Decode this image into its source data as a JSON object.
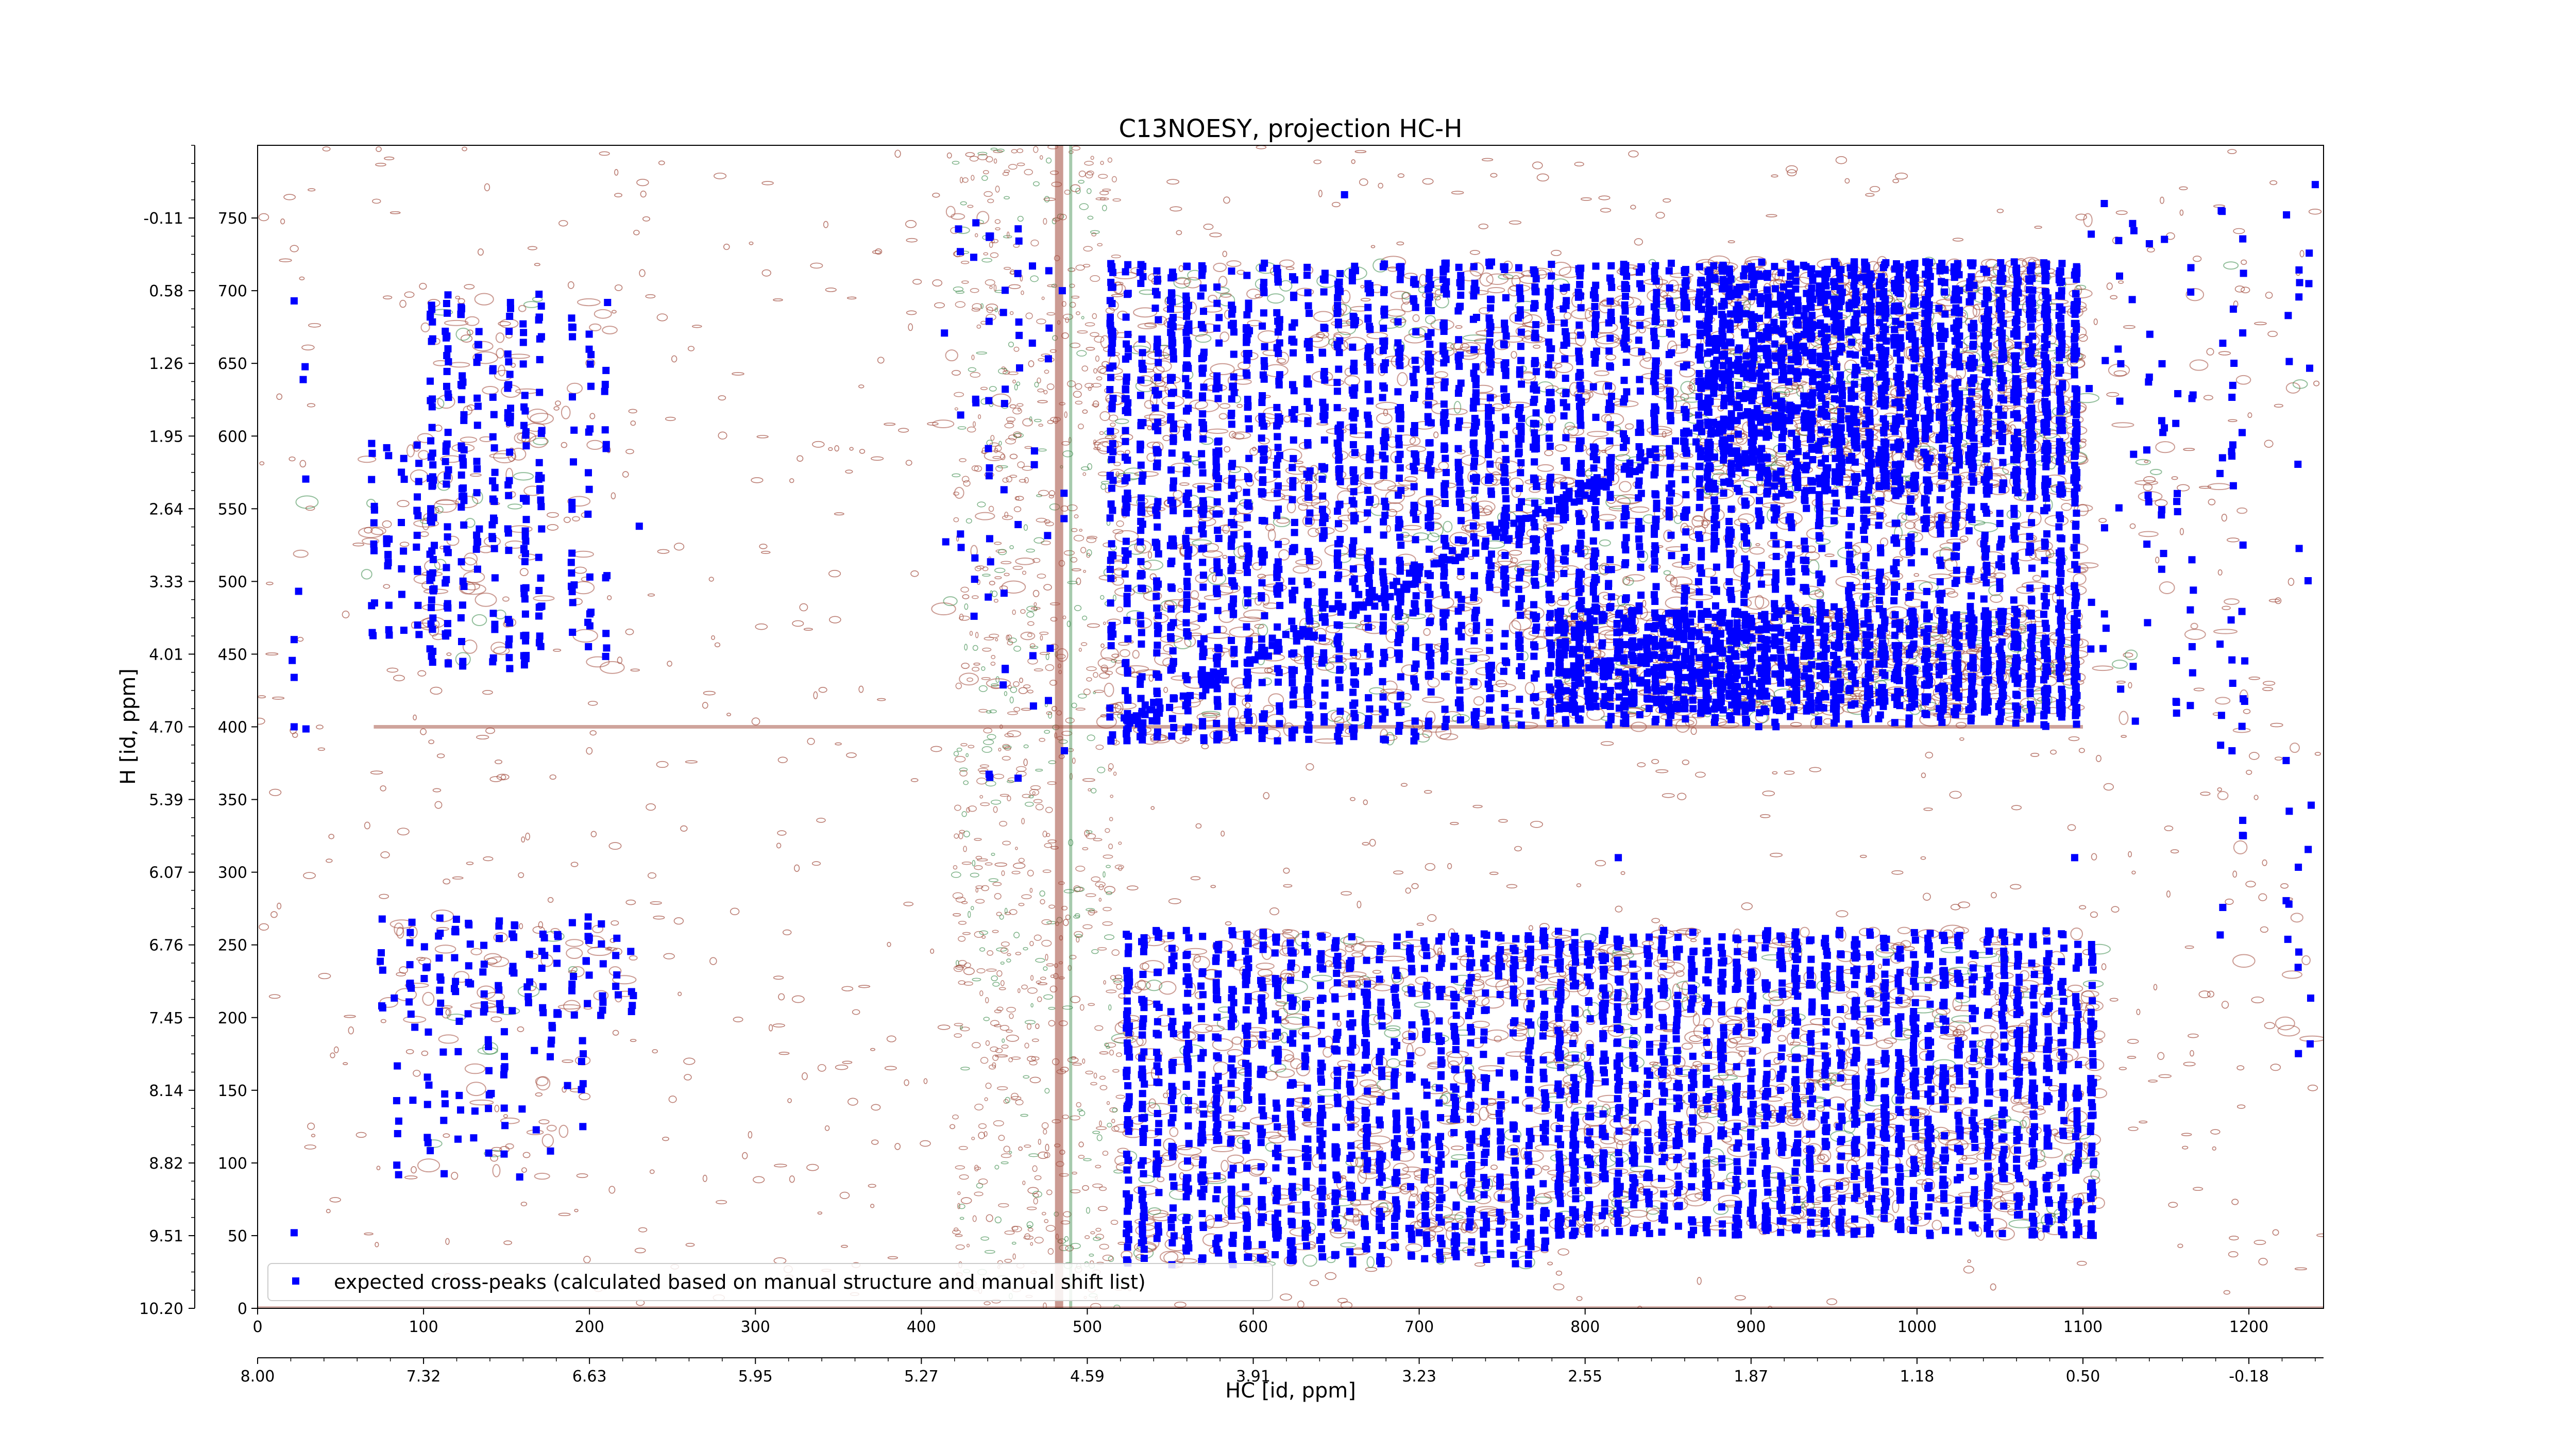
{
  "chart_data": {
    "type": "scatter",
    "title": "C13NOESY, projection HC-H",
    "xlabel": "HC [id, ppm]",
    "ylabel": "H [id, ppm]",
    "xlim": [
      0,
      1245
    ],
    "ylim": [
      0,
      800
    ],
    "x_ticks": [
      "0",
      "100",
      "200",
      "300",
      "400",
      "500",
      "600",
      "700",
      "800",
      "900",
      "1000",
      "1100",
      "1200"
    ],
    "x_ppm_ticks": [
      {
        "x": 0,
        "label": "8.00"
      },
      {
        "x": 100,
        "label": "7.32"
      },
      {
        "x": 200,
        "label": "6.63"
      },
      {
        "x": 300,
        "label": "5.95"
      },
      {
        "x": 400,
        "label": "5.27"
      },
      {
        "x": 500,
        "label": "4.59"
      },
      {
        "x": 600,
        "label": "3.91"
      },
      {
        "x": 700,
        "label": "3.23"
      },
      {
        "x": 800,
        "label": "2.55"
      },
      {
        "x": 900,
        "label": "1.87"
      },
      {
        "x": 1000,
        "label": "1.18"
      },
      {
        "x": 1100,
        "label": "0.50"
      },
      {
        "x": 1200,
        "label": "-0.18"
      }
    ],
    "y_ticks": [
      "0",
      "50",
      "100",
      "150",
      "200",
      "250",
      "300",
      "350",
      "400",
      "450",
      "500",
      "550",
      "600",
      "650",
      "700",
      "750"
    ],
    "y_ppm_ticks": [
      {
        "y": 0,
        "label": "10.20"
      },
      {
        "y": 50,
        "label": "9.51"
      },
      {
        "y": 100,
        "label": "8.82"
      },
      {
        "y": 150,
        "label": "8.14"
      },
      {
        "y": 200,
        "label": "7.45"
      },
      {
        "y": 250,
        "label": "6.76"
      },
      {
        "y": 300,
        "label": "6.07"
      },
      {
        "y": 350,
        "label": "5.39"
      },
      {
        "y": 400,
        "label": "4.70"
      },
      {
        "y": 450,
        "label": "4.01"
      },
      {
        "y": 500,
        "label": "3.33"
      },
      {
        "y": 550,
        "label": "2.64"
      },
      {
        "y": 600,
        "label": "1.95"
      },
      {
        "y": 650,
        "label": "1.26"
      },
      {
        "y": 700,
        "label": "0.58"
      },
      {
        "y": 750,
        "label": "-0.11"
      }
    ],
    "legend": {
      "label": "expected cross-peaks (calculated based on manual structure and manual shift list)",
      "placement": "bottom-left"
    },
    "colors": {
      "markers": "#0000ff",
      "contour_positive": "#a0493a",
      "contour_negative": "#3a8a4a"
    },
    "grid": false,
    "series": [
      {
        "name": "expected cross-peaks (calculated based on manual structure and manual shift list)",
        "clusters": [
          {
            "x": [
              65,
              110
            ],
            "y": [
              460,
              600
            ],
            "density": 60
          },
          {
            "x": [
              100,
              175
            ],
            "y": [
              440,
              700
            ],
            "density": 240
          },
          {
            "x": [
              185,
              215
            ],
            "y": [
              440,
              700
            ],
            "density": 45
          },
          {
            "x": [
              20,
              30
            ],
            "y": [
              340,
              700
            ],
            "density": 6
          },
          {
            "x": [
              70,
              230
            ],
            "y": [
              200,
              270
            ],
            "density": 120
          },
          {
            "x": [
              80,
              200
            ],
            "y": [
              90,
              200
            ],
            "density": 60
          },
          {
            "x": [
              410,
              490
            ],
            "y": [
              360,
              760
            ],
            "density": 60
          },
          {
            "x": [
              510,
              720
            ],
            "y": [
              390,
              720
            ],
            "density": 1400
          },
          {
            "x": [
              720,
              1100
            ],
            "y": [
              400,
              720
            ],
            "density": 2600
          },
          {
            "x": [
              870,
              1100
            ],
            "y": [
              560,
              720
            ],
            "density": 1300
          },
          {
            "x": [
              780,
              1100
            ],
            "y": [
              410,
              480
            ],
            "density": 900
          },
          {
            "x": [
              520,
              780
            ],
            "y": [
              30,
              260
            ],
            "density": 1300
          },
          {
            "x": [
              780,
              1110
            ],
            "y": [
              50,
              260
            ],
            "density": 1900
          },
          {
            "x": [
              1100,
              1170
            ],
            "y": [
              400,
              760
            ],
            "density": 60
          },
          {
            "x": [
              1180,
              1200
            ],
            "y": [
              200,
              760
            ],
            "density": 35
          },
          {
            "x": [
              1220,
              1240
            ],
            "y": [
              130,
              760
            ],
            "density": 25
          }
        ],
        "diagonal": {
          "x": [
            520,
            900
          ],
          "y": [
            400,
            620
          ],
          "count": 180
        },
        "sample_points": [
          {
            "x": 22,
            "y": 52
          },
          {
            "x": 22,
            "y": 400
          },
          {
            "x": 22,
            "y": 434
          },
          {
            "x": 22,
            "y": 460
          },
          {
            "x": 22,
            "y": 693
          },
          {
            "x": 230,
            "y": 538
          },
          {
            "x": 655,
            "y": 766
          },
          {
            "x": 1240,
            "y": 773
          },
          {
            "x": 1070,
            "y": 52
          },
          {
            "x": 820,
            "y": 310
          },
          {
            "x": 1095,
            "y": 310
          },
          {
            "x": 700,
            "y": 52
          }
        ]
      }
    ]
  }
}
